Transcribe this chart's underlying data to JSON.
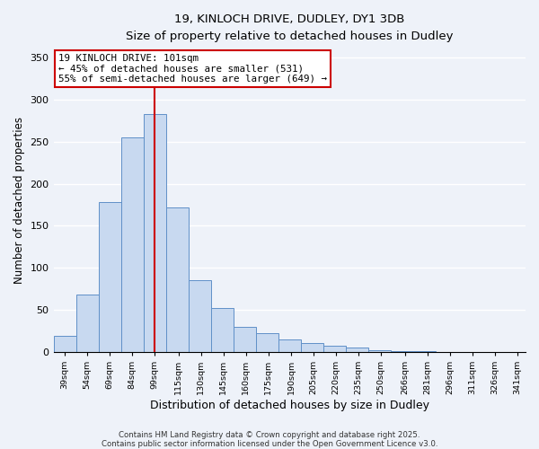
{
  "title": "19, KINLOCH DRIVE, DUDLEY, DY1 3DB",
  "subtitle": "Size of property relative to detached houses in Dudley",
  "xlabel": "Distribution of detached houses by size in Dudley",
  "ylabel": "Number of detached properties",
  "bar_values": [
    19,
    68,
    178,
    255,
    283,
    172,
    85,
    52,
    29,
    22,
    15,
    10,
    7,
    5,
    2,
    1,
    1,
    0,
    0,
    0
  ],
  "bin_labels": [
    "39sqm",
    "54sqm",
    "69sqm",
    "84sqm",
    "99sqm",
    "115sqm",
    "130sqm",
    "145sqm",
    "160sqm",
    "175sqm",
    "190sqm",
    "205sqm",
    "220sqm",
    "235sqm",
    "250sqm",
    "266sqm",
    "281sqm",
    "296sqm",
    "311sqm",
    "326sqm",
    "341sqm"
  ],
  "bar_color": "#c8d9f0",
  "bar_edge_color": "#6090c8",
  "property_line_x": 99,
  "property_line_color": "#cc0000",
  "annotation_text": "19 KINLOCH DRIVE: 101sqm\n← 45% of detached houses are smaller (531)\n55% of semi-detached houses are larger (649) →",
  "annotation_box_color": "#ffffff",
  "annotation_box_edge": "#cc0000",
  "ylim": [
    0,
    360
  ],
  "yticks": [
    0,
    50,
    100,
    150,
    200,
    250,
    300,
    350
  ],
  "footer1": "Contains HM Land Registry data © Crown copyright and database right 2025.",
  "footer2": "Contains public sector information licensed under the Open Government Licence v3.0.",
  "background_color": "#eef2f9",
  "grid_color": "#ffffff"
}
